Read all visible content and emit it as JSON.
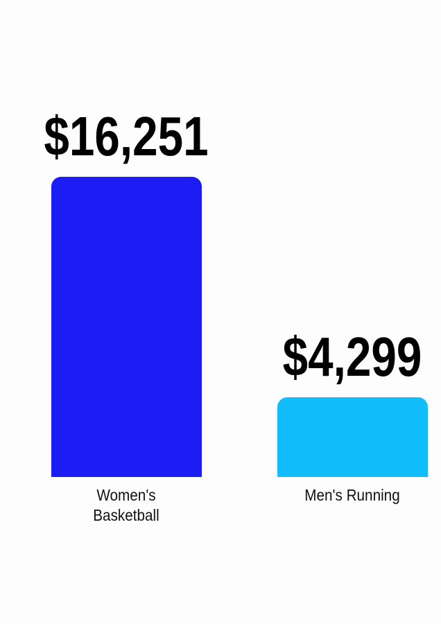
{
  "chart_data": {
    "type": "bar",
    "categories": [
      "Women's Basketball",
      "Men's Running"
    ],
    "values": [
      16251,
      4299
    ],
    "value_labels": [
      "$16,251",
      "$4,299"
    ],
    "colors": [
      "#1c1cf5",
      "#12bdfc"
    ]
  }
}
